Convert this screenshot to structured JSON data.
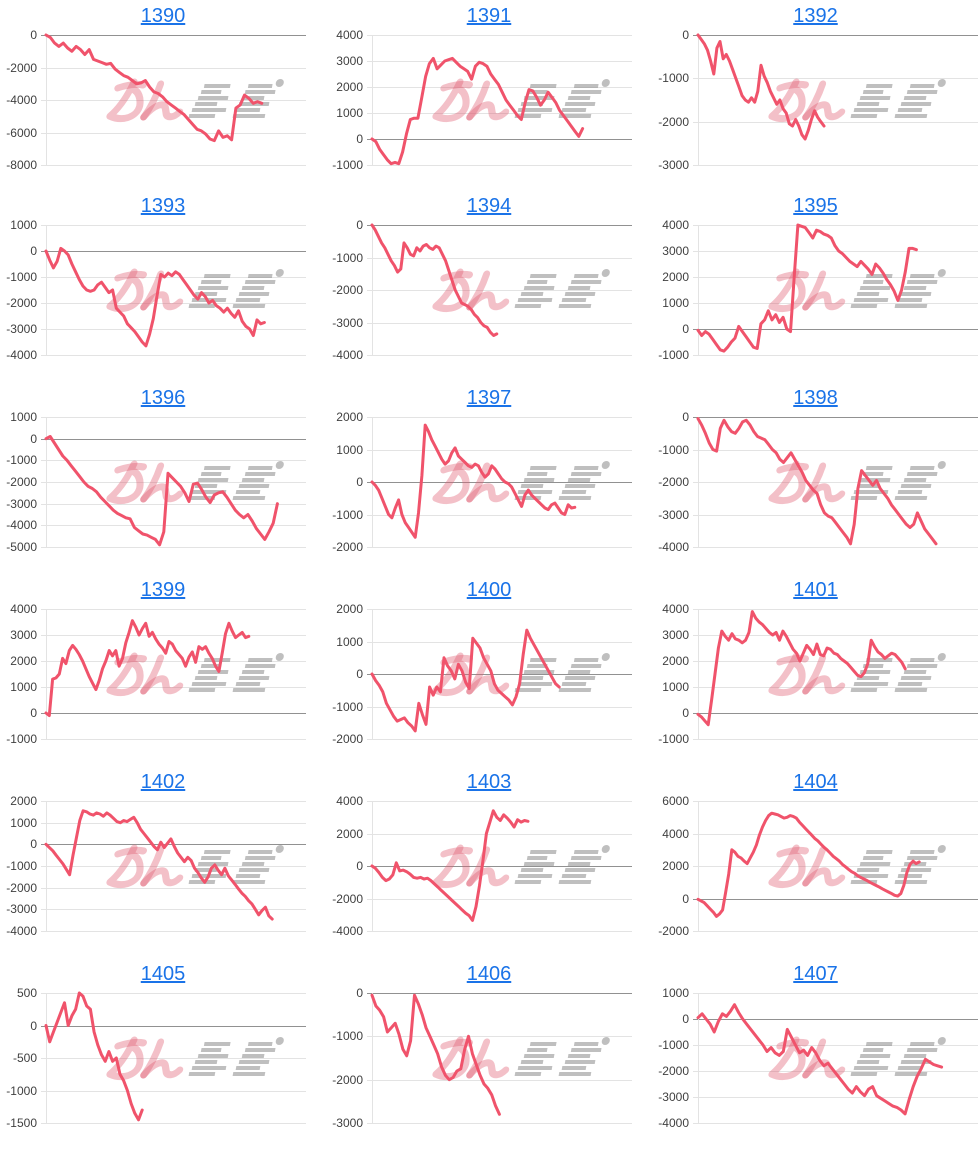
{
  "page": {
    "background": "#ffffff"
  },
  "watermark": {
    "pink_text": "みん",
    "gray_text": "レポ",
    "pink_color": "#e05a6e",
    "gray_color": "#8c8c8c"
  },
  "chart_defaults": {
    "line_color": "#f0536b",
    "grid_color": "#e3e3e3",
    "zero_line_color": "#919191",
    "axis_label_color": "#404040",
    "title_color": "#1a73e8",
    "legend": "none",
    "grid": "horizontal-only",
    "x_axis_labels": "none"
  },
  "chart_data": [
    {
      "type": "line",
      "title": "1390",
      "ylim": [
        -8000,
        0
      ],
      "y_ticks": [
        0,
        -2000,
        -4000,
        -6000,
        -8000
      ],
      "x_end_fraction": 0.83,
      "values": [
        0,
        -150,
        -500,
        -700,
        -500,
        -800,
        -1000,
        -700,
        -900,
        -1200,
        -900,
        -1500,
        -1600,
        -1700,
        -1800,
        -1750,
        -2100,
        -2300,
        -2500,
        -2600,
        -2800,
        -3000,
        -2950,
        -2800,
        -3200,
        -3500,
        -3600,
        -3800,
        -4100,
        -4300,
        -4500,
        -4700,
        -4900,
        -5200,
        -5500,
        -5800,
        -5900,
        -6100,
        -6400,
        -6500,
        -5900,
        -6300,
        -6200,
        -6450,
        -4500,
        -4300,
        -3700,
        -3900,
        -4200,
        -4100,
        -4200
      ]
    },
    {
      "type": "line",
      "title": "1391",
      "ylim": [
        -1000,
        4000
      ],
      "y_ticks": [
        4000,
        3000,
        2000,
        1000,
        0,
        -1000
      ],
      "x_end_fraction": 0.81,
      "values": [
        0,
        -100,
        -400,
        -600,
        -800,
        -950,
        -900,
        -950,
        -500,
        200,
        750,
        800,
        800,
        1600,
        2400,
        2900,
        3100,
        2700,
        2850,
        3000,
        3050,
        3100,
        2950,
        2800,
        2700,
        2600,
        2300,
        2800,
        2950,
        2900,
        2800,
        2500,
        2300,
        2100,
        1800,
        1500,
        1300,
        1100,
        900,
        750,
        1400,
        1900,
        1850,
        1600,
        1300,
        1500,
        1800,
        1600,
        1400,
        1100,
        900,
        700,
        500,
        300,
        100,
        400
      ]
    },
    {
      "type": "line",
      "title": "1392",
      "ylim": [
        -3000,
        0
      ],
      "y_ticks": [
        0,
        -1000,
        -2000,
        -3000
      ],
      "x_end_fraction": 0.45,
      "values": [
        0,
        -100,
        -200,
        -350,
        -600,
        -900,
        -300,
        -150,
        -550,
        -450,
        -600,
        -800,
        -1000,
        -1200,
        -1400,
        -1500,
        -1550,
        -1450,
        -1550,
        -1300,
        -700,
        -950,
        -1100,
        -1300,
        -1450,
        -1600,
        -1500,
        -1700,
        -1800,
        -2050,
        -2100,
        -1950,
        -2100,
        -2300,
        -2400,
        -2200,
        -1950,
        -1750,
        -1900,
        -2000,
        -2100
      ]
    },
    {
      "type": "line",
      "title": "1393",
      "ylim": [
        -4000,
        1000
      ],
      "y_ticks": [
        1000,
        0,
        -1000,
        -2000,
        -3000,
        -4000
      ],
      "x_end_fraction": 0.84,
      "values": [
        0,
        -350,
        -650,
        -400,
        100,
        0,
        -150,
        -500,
        -800,
        -1100,
        -1350,
        -1500,
        -1550,
        -1500,
        -1300,
        -1200,
        -1400,
        -1600,
        -1500,
        -2200,
        -2350,
        -2500,
        -2800,
        -2950,
        -3100,
        -3300,
        -3500,
        -3650,
        -3200,
        -2600,
        -1700,
        -900,
        -1000,
        -850,
        -950,
        -800,
        -900,
        -1100,
        -1300,
        -1500,
        -1700,
        -1850,
        -1600,
        -1750,
        -2000,
        -1900,
        -2100,
        -2200,
        -2350,
        -2200,
        -2400,
        -2550,
        -2300,
        -2700,
        -2900,
        -3000,
        -3250,
        -2650,
        -2800,
        -2750
      ]
    },
    {
      "type": "line",
      "title": "1394",
      "ylim": [
        -4000,
        0
      ],
      "y_ticks": [
        0,
        -1000,
        -2000,
        -3000,
        -4000
      ],
      "x_end_fraction": 0.48,
      "values": [
        0,
        -150,
        -350,
        -550,
        -700,
        -900,
        -1100,
        -1250,
        -1450,
        -1350,
        -550,
        -700,
        -900,
        -950,
        -700,
        -800,
        -650,
        -600,
        -700,
        -750,
        -650,
        -700,
        -900,
        -1100,
        -1400,
        -1700,
        -2000,
        -2200,
        -2400,
        -2450,
        -2500,
        -2600,
        -2750,
        -2850,
        -3000,
        -3100,
        -3150,
        -3300,
        -3400,
        -3350
      ]
    },
    {
      "type": "line",
      "title": "1395",
      "ylim": [
        -1000,
        4000
      ],
      "y_ticks": [
        4000,
        3000,
        2000,
        1000,
        0,
        -1000
      ],
      "x_end_fraction": 0.78,
      "values": [
        -50,
        -250,
        -100,
        -200,
        -400,
        -600,
        -800,
        -850,
        -700,
        -500,
        -350,
        100,
        -100,
        -300,
        -500,
        -700,
        -750,
        200,
        350,
        700,
        350,
        550,
        250,
        450,
        0,
        -100,
        2000,
        4000,
        3950,
        3900,
        3700,
        3500,
        3800,
        3750,
        3650,
        3600,
        3500,
        3200,
        3000,
        2900,
        2750,
        2600,
        2500,
        2400,
        2600,
        2450,
        2300,
        2100,
        2500,
        2350,
        2150,
        1900,
        1700,
        1450,
        1100,
        1500,
        2200,
        3100,
        3100,
        3050
      ]
    },
    {
      "type": "line",
      "title": "1396",
      "ylim": [
        -5000,
        1000
      ],
      "y_ticks": [
        1000,
        0,
        -1000,
        -2000,
        -3000,
        -4000,
        -5000
      ],
      "x_end_fraction": 0.89,
      "values": [
        0,
        100,
        -200,
        -500,
        -800,
        -1000,
        -1250,
        -1500,
        -1750,
        -2000,
        -2200,
        -2300,
        -2450,
        -2700,
        -2900,
        -3100,
        -3300,
        -3450,
        -3550,
        -3650,
        -3700,
        -4100,
        -4250,
        -4400,
        -4450,
        -4550,
        -4650,
        -4900,
        -4300,
        -1600,
        -1800,
        -2000,
        -2200,
        -2500,
        -2900,
        -2100,
        -2050,
        -2350,
        -2700,
        -2950,
        -2600,
        -2500,
        -2450,
        -2700,
        -3000,
        -3300,
        -3500,
        -3650,
        -3500,
        -3800,
        -4150,
        -4400,
        -4650,
        -4300,
        -3900,
        -3000
      ]
    },
    {
      "type": "line",
      "title": "1397",
      "ylim": [
        -2000,
        2000
      ],
      "y_ticks": [
        2000,
        1000,
        0,
        -1000,
        -2000
      ],
      "x_end_fraction": 0.78,
      "values": [
        0,
        -100,
        -250,
        -500,
        -750,
        -1000,
        -1100,
        -800,
        -550,
        -1000,
        -1250,
        -1400,
        -1550,
        -1700,
        -950,
        200,
        1750,
        1550,
        1300,
        1100,
        900,
        700,
        550,
        650,
        900,
        1050,
        800,
        700,
        600,
        500,
        450,
        550,
        500,
        300,
        150,
        250,
        500,
        400,
        250,
        100,
        0,
        -50,
        -150,
        -350,
        -550,
        -750,
        -400,
        -250,
        -400,
        -500,
        -600,
        -700,
        -800,
        -850,
        -700,
        -650,
        -800,
        -950,
        -1000,
        -700,
        -800,
        -780
      ]
    },
    {
      "type": "line",
      "title": "1398",
      "ylim": [
        -4000,
        0
      ],
      "y_ticks": [
        0,
        -1000,
        -2000,
        -3000,
        -4000
      ],
      "x_end_fraction": 0.85,
      "values": [
        -50,
        -250,
        -500,
        -800,
        -1000,
        -1050,
        -350,
        -100,
        -300,
        -450,
        -500,
        -350,
        -150,
        -100,
        -250,
        -450,
        -600,
        -650,
        -700,
        -850,
        -1000,
        -1100,
        -1300,
        -1400,
        -1250,
        -1100,
        -1300,
        -1500,
        -1700,
        -1950,
        -2100,
        -2250,
        -2350,
        -2700,
        -2950,
        -3050,
        -3100,
        -3250,
        -3400,
        -3550,
        -3700,
        -3900,
        -3300,
        -2200,
        -1650,
        -1800,
        -1950,
        -2100,
        -1950,
        -2200,
        -2350,
        -2500,
        -2700,
        -2850,
        -3000,
        -3150,
        -3300,
        -3400,
        -3300,
        -2950,
        -3200,
        -3450,
        -3600,
        -3750,
        -3900
      ]
    },
    {
      "type": "line",
      "title": "1399",
      "ylim": [
        -1000,
        4000
      ],
      "y_ticks": [
        4000,
        3000,
        2000,
        1000,
        0,
        -1000
      ],
      "x_end_fraction": 0.78,
      "values": [
        0,
        -100,
        1300,
        1350,
        1500,
        2100,
        1900,
        2400,
        2600,
        2450,
        2250,
        2000,
        1700,
        1400,
        1150,
        900,
        1250,
        1700,
        2000,
        2400,
        2200,
        2400,
        1800,
        2100,
        2700,
        3100,
        3550,
        3300,
        3000,
        3250,
        3450,
        2950,
        3100,
        2850,
        2650,
        2500,
        2300,
        2750,
        2650,
        2400,
        2250,
        2100,
        1800,
        2150,
        2350,
        1950,
        2550,
        2450,
        2550,
        2300,
        2100,
        1800,
        1600,
        2300,
        3050,
        3450,
        3150,
        2900,
        3000,
        3100,
        2900,
        2950
      ]
    },
    {
      "type": "line",
      "title": "1400",
      "ylim": [
        -2000,
        2000
      ],
      "y_ticks": [
        2000,
        1000,
        0,
        -1000,
        -2000
      ],
      "x_end_fraction": 0.72,
      "values": [
        0,
        -200,
        -350,
        -550,
        -900,
        -1100,
        -1300,
        -1450,
        -1400,
        -1350,
        -1500,
        -1600,
        -1750,
        -900,
        -1250,
        -1550,
        -400,
        -650,
        -400,
        -550,
        500,
        250,
        100,
        -150,
        300,
        100,
        -250,
        -450,
        1100,
        950,
        800,
        500,
        300,
        100,
        -300,
        -500,
        -600,
        -700,
        -800,
        -950,
        -700,
        -300,
        600,
        1350,
        1100,
        900,
        700,
        500,
        300,
        100,
        -100,
        -300,
        -400
      ]
    },
    {
      "type": "line",
      "title": "1401",
      "ylim": [
        -1000,
        4000
      ],
      "y_ticks": [
        4000,
        3000,
        2000,
        1000,
        0,
        -1000
      ],
      "x_end_fraction": 0.74,
      "values": [
        -50,
        -150,
        -300,
        -450,
        500,
        1500,
        2500,
        3150,
        2950,
        2800,
        3050,
        2850,
        2800,
        2700,
        2800,
        3100,
        3900,
        3650,
        3500,
        3400,
        3250,
        3100,
        3000,
        3100,
        2800,
        3150,
        2950,
        2700,
        2450,
        2300,
        2000,
        2300,
        2600,
        2450,
        2250,
        2650,
        2250,
        2200,
        2500,
        2450,
        2300,
        2250,
        2100,
        2000,
        1900,
        1750,
        1600,
        1450,
        1400,
        1550,
        1900,
        2800,
        2550,
        2350,
        2250,
        2100,
        2200,
        2300,
        2250,
        2100,
        1950,
        1700
      ]
    },
    {
      "type": "line",
      "title": "1402",
      "ylim": [
        -4000,
        2000
      ],
      "y_ticks": [
        2000,
        1000,
        0,
        -1000,
        -2000,
        -3000,
        -4000
      ],
      "x_end_fraction": 0.87,
      "values": [
        0,
        -150,
        -300,
        -500,
        -700,
        -900,
        -1150,
        -1400,
        -500,
        300,
        1100,
        1550,
        1500,
        1400,
        1350,
        1450,
        1400,
        1300,
        1450,
        1350,
        1200,
        1050,
        1000,
        1100,
        1050,
        1150,
        1250,
        1000,
        700,
        500,
        300,
        100,
        -100,
        -250,
        100,
        -150,
        50,
        250,
        -100,
        -400,
        -600,
        -800,
        -600,
        -750,
        -1100,
        -1300,
        -1550,
        -1750,
        -1500,
        -1100,
        -950,
        -1200,
        -1400,
        -1100,
        -1450,
        -1650,
        -1850,
        -2050,
        -2250,
        -2400,
        -2600,
        -2750,
        -3000,
        -3250,
        -3050,
        -2900,
        -3300,
        -3450
      ]
    },
    {
      "type": "line",
      "title": "1403",
      "ylim": [
        -4000,
        4000
      ],
      "y_ticks": [
        4000,
        2000,
        0,
        -2000,
        -4000
      ],
      "x_end_fraction": 0.6,
      "values": [
        0,
        -150,
        -400,
        -700,
        -900,
        -800,
        -550,
        200,
        -300,
        -250,
        -350,
        -500,
        -700,
        -750,
        -700,
        -800,
        -750,
        -900,
        -1100,
        -1300,
        -1500,
        -1700,
        -1900,
        -2100,
        -2300,
        -2500,
        -2700,
        -2900,
        -3050,
        -3350,
        -2500,
        -1200,
        300,
        2000,
        2700,
        3400,
        3000,
        2800,
        3150,
        2950,
        2700,
        2400,
        2850,
        2700,
        2800,
        2750
      ]
    },
    {
      "type": "line",
      "title": "1404",
      "ylim": [
        -2000,
        6000
      ],
      "y_ticks": [
        6000,
        4000,
        2000,
        0,
        -2000
      ],
      "x_end_fraction": 0.79,
      "values": [
        -50,
        -150,
        -250,
        -450,
        -650,
        -850,
        -1100,
        -950,
        -700,
        400,
        1500,
        3000,
        2850,
        2600,
        2500,
        2300,
        2150,
        2500,
        2850,
        3300,
        3900,
        4400,
        4800,
        5100,
        5250,
        5200,
        5150,
        5050,
        4950,
        5000,
        5100,
        5050,
        4950,
        4700,
        4500,
        4300,
        4100,
        3900,
        3700,
        3550,
        3350,
        3150,
        3000,
        2800,
        2600,
        2450,
        2300,
        2100,
        1950,
        1800,
        1650,
        1550,
        1400,
        1300,
        1200,
        1100,
        1000,
        900,
        800,
        700,
        600,
        500,
        400,
        300,
        200,
        150,
        300,
        800,
        1600,
        2100,
        2300,
        2150,
        2250
      ]
    },
    {
      "type": "line",
      "title": "1405",
      "ylim": [
        -1500,
        500
      ],
      "y_ticks": [
        500,
        0,
        -500,
        -1000,
        -1500
      ],
      "x_end_fraction": 0.37,
      "values": [
        0,
        -250,
        -100,
        50,
        200,
        350,
        0,
        150,
        250,
        500,
        450,
        300,
        250,
        -100,
        -300,
        -450,
        -550,
        -400,
        -550,
        -500,
        -750,
        -850,
        -1000,
        -1200,
        -1350,
        -1450,
        -1300
      ]
    },
    {
      "type": "line",
      "title": "1406",
      "ylim": [
        -3000,
        0
      ],
      "y_ticks": [
        0,
        -1000,
        -2000,
        -3000
      ],
      "x_end_fraction": 0.49,
      "values": [
        -50,
        -300,
        -400,
        -550,
        -900,
        -800,
        -700,
        -950,
        -1300,
        -1450,
        -1100,
        -50,
        -250,
        -500,
        -800,
        -1000,
        -1200,
        -1400,
        -1700,
        -1900,
        -2000,
        -1950,
        -1800,
        -1750,
        -1300,
        -1000,
        -1400,
        -1650,
        -1900,
        -2100,
        -2200,
        -2350,
        -2600,
        -2800
      ]
    },
    {
      "type": "line",
      "title": "1407",
      "ylim": [
        -4000,
        1000
      ],
      "y_ticks": [
        1000,
        0,
        -1000,
        -2000,
        -3000,
        -4000
      ],
      "x_end_fraction": 0.87,
      "values": [
        50,
        200,
        0,
        -200,
        -500,
        -100,
        200,
        100,
        300,
        550,
        250,
        0,
        -200,
        -400,
        -600,
        -800,
        -1000,
        -1250,
        -1100,
        -1300,
        -1400,
        -1250,
        -400,
        -700,
        -1000,
        -1300,
        -1200,
        -1400,
        -1100,
        -1300,
        -1600,
        -1800,
        -1700,
        -1900,
        -2100,
        -2300,
        -2500,
        -2700,
        -2850,
        -2600,
        -2800,
        -2950,
        -2700,
        -2600,
        -2950,
        -3050,
        -3150,
        -3250,
        -3350,
        -3400,
        -3500,
        -3650,
        -3100,
        -2600,
        -2200,
        -1900,
        -1550,
        -1650,
        -1750,
        -1800,
        -1850
      ]
    }
  ]
}
